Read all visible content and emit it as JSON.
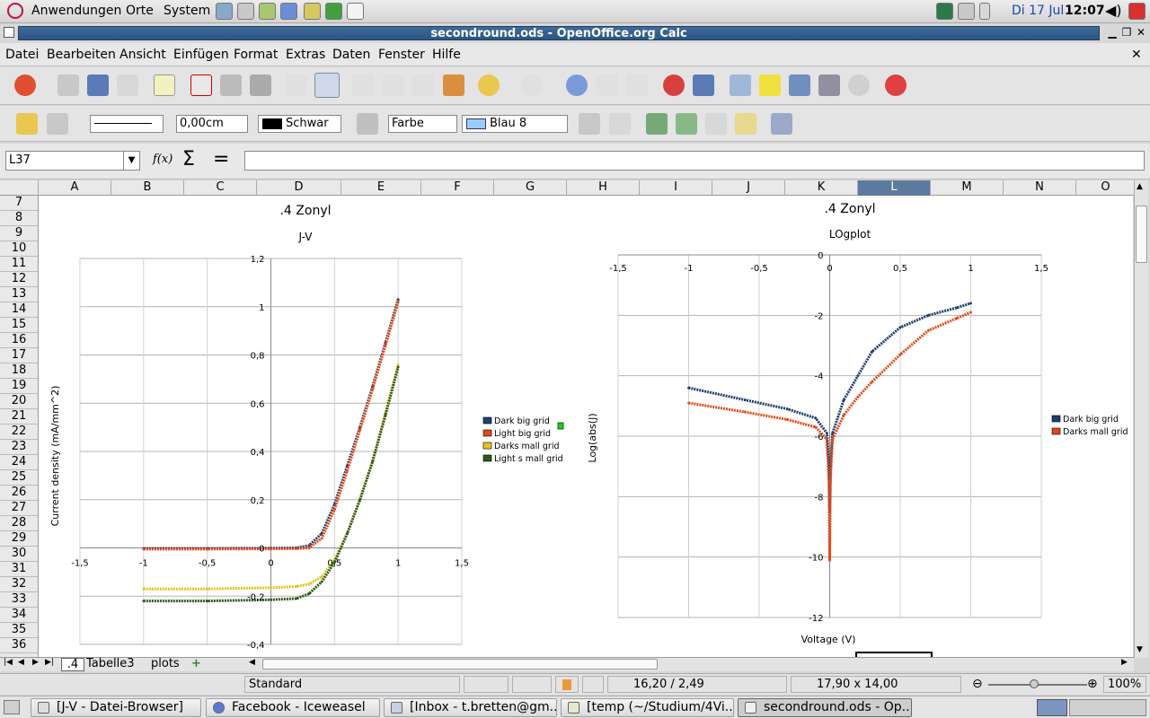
{
  "top_panel": {
    "menus": [
      "Anwendungen",
      "Orte",
      "System"
    ],
    "date": "Di 17 Jul",
    "time": "12:07"
  },
  "window": {
    "title": "secondround.ods - OpenOffice.org Calc"
  },
  "menubar": [
    "Datei",
    "Bearbeiten",
    "Ansicht",
    "Einfügen",
    "Format",
    "Extras",
    "Daten",
    "Fenster",
    "Hilfe"
  ],
  "drawbar": {
    "line_width": "0,00cm",
    "line_color": "Schwar",
    "area_style": "Farbe",
    "area_color": "Blau 8",
    "colors": {
      "line_color": "#000000",
      "area_color": "#99ccff"
    }
  },
  "formula": {
    "name_box": "L37",
    "fx": "f(x)",
    "sum": "Σ",
    "equals": "=",
    "content": ""
  },
  "columns": [
    "A",
    "B",
    "C",
    "D",
    "E",
    "F",
    "G",
    "H",
    "I",
    "J",
    "K",
    "L",
    "M",
    "N",
    "O"
  ],
  "rows": [
    "7",
    "8",
    "9",
    "10",
    "11",
    "12",
    "13",
    "14",
    "15",
    "16",
    "17",
    "18",
    "19",
    "20",
    "21",
    "22",
    "23",
    "24",
    "25",
    "26",
    "27",
    "28",
    "29",
    "30",
    "31",
    "32",
    "33",
    "34",
    "35",
    "36"
  ],
  "sheet_tabs": [
    ".4",
    "Tabelle3",
    "plots"
  ],
  "status": {
    "style": "Standard",
    "position": "16,20 / 2,49",
    "size": "17,90 x 14,00",
    "zoom": "100%"
  },
  "taskbar": [
    "[J-V - Datei-Browser]",
    "Facebook - Iceweasel",
    "[Inbox - t.bretten@gm...",
    "[temp (~/Studium/4Vi...",
    "secondround.ods - Op..."
  ],
  "chart_data": [
    {
      "type": "line",
      "title": ".4 Zonyl",
      "subtitle": "J-V",
      "xlabel": "",
      "ylabel": "Current density (mA/mm^2)",
      "xlim": [
        -1.5,
        1.5
      ],
      "ylim": [
        -0.4,
        1.2
      ],
      "x_ticks": [
        "-1,5",
        "-1",
        "-0,5",
        "0",
        "0,5",
        "1",
        "1,5"
      ],
      "y_ticks": [
        "-0,4",
        "-0,2",
        "0",
        "0,2",
        "0,4",
        "0,6",
        "0,8",
        "1",
        "1,2"
      ],
      "grid": true,
      "legend_position": "right",
      "series": [
        {
          "name": "Dark big grid",
          "color": "#1f3f6f",
          "x": [
            -1,
            -0.5,
            0,
            0.2,
            0.3,
            0.4,
            0.5,
            0.6,
            0.7,
            0.8,
            0.9,
            1.0
          ],
          "y": [
            -0.002,
            -0.002,
            -0.001,
            0.0,
            0.01,
            0.06,
            0.18,
            0.34,
            0.5,
            0.67,
            0.85,
            1.03
          ]
        },
        {
          "name": "Light big grid",
          "color": "#e04a1a",
          "x": [
            -1,
            -0.5,
            0,
            0.2,
            0.3,
            0.4,
            0.5,
            0.6,
            0.7,
            0.8,
            0.9,
            1.0
          ],
          "y": [
            -0.005,
            -0.005,
            -0.004,
            -0.003,
            0.0,
            0.04,
            0.16,
            0.32,
            0.49,
            0.66,
            0.84,
            1.02
          ]
        },
        {
          "name": "Darks mall grid",
          "color": "#e8c020",
          "x": [
            -1,
            -0.5,
            0,
            0.2,
            0.3,
            0.4,
            0.5,
            0.6,
            0.7,
            0.8,
            0.9,
            1.0
          ],
          "y": [
            -0.17,
            -0.17,
            -0.165,
            -0.16,
            -0.15,
            -0.12,
            -0.05,
            0.06,
            0.2,
            0.36,
            0.56,
            0.76
          ]
        },
        {
          "name": "Light s mall grid",
          "color": "#2a5a1a",
          "x": [
            -1,
            -0.5,
            0,
            0.2,
            0.3,
            0.4,
            0.5,
            0.6,
            0.7,
            0.8,
            0.9,
            1.0
          ],
          "y": [
            -0.22,
            -0.22,
            -0.215,
            -0.21,
            -0.19,
            -0.14,
            -0.06,
            0.06,
            0.2,
            0.36,
            0.55,
            0.75
          ]
        }
      ]
    },
    {
      "type": "line",
      "title": ".4 Zonyl",
      "subtitle": "LOgplot",
      "xlabel": "Voltage (V)",
      "ylabel": "Log(abs(J)",
      "xlim": [
        -1.5,
        1.5
      ],
      "ylim": [
        -12,
        0
      ],
      "x_ticks": [
        "-1,5",
        "-1",
        "-0,5",
        "0",
        "0,5",
        "1",
        "1,5"
      ],
      "y_ticks": [
        "0",
        "-2",
        "-4",
        "-6",
        "-8",
        "-10",
        "-12"
      ],
      "grid": true,
      "legend_position": "right",
      "series": [
        {
          "name": "Dark big grid",
          "color": "#1f3f6f",
          "x": [
            -1,
            -0.6,
            -0.3,
            -0.1,
            -0.02,
            -0.005,
            0,
            0.005,
            0.02,
            0.1,
            0.2,
            0.3,
            0.5,
            0.7,
            0.9,
            1.0
          ],
          "y": [
            -4.4,
            -4.8,
            -5.1,
            -5.4,
            -5.9,
            -7.0,
            -8.5,
            -7.0,
            -5.9,
            -4.8,
            -4.0,
            -3.2,
            -2.4,
            -2.0,
            -1.75,
            -1.6
          ]
        },
        {
          "name": "Darks mall grid",
          "color": "#e04a1a",
          "x": [
            -1,
            -0.6,
            -0.3,
            -0.1,
            -0.02,
            -0.005,
            0,
            0.005,
            0.02,
            0.1,
            0.2,
            0.3,
            0.5,
            0.7,
            0.9,
            1.0
          ],
          "y": [
            -4.9,
            -5.2,
            -5.45,
            -5.7,
            -6.1,
            -7.5,
            -10.1,
            -7.5,
            -6.1,
            -5.3,
            -4.7,
            -4.2,
            -3.3,
            -2.5,
            -2.1,
            -1.9
          ]
        }
      ]
    }
  ]
}
